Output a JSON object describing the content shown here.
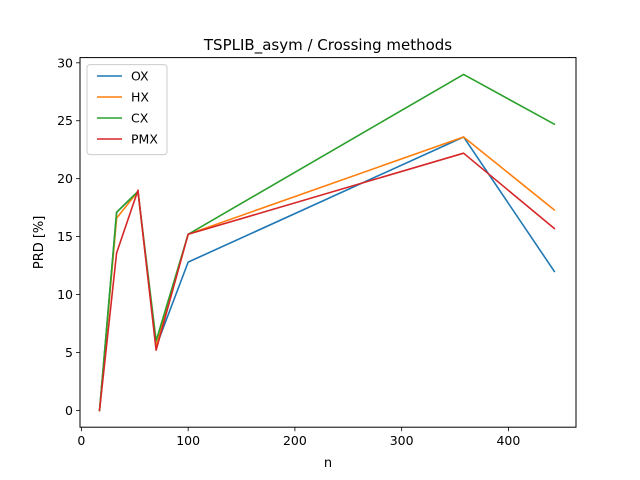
{
  "chart_data": {
    "type": "line",
    "title": "TSPLIB_asym / Crossing methods",
    "xlabel": "n",
    "ylabel": "PRD [%]",
    "xlim": [
      -1.3,
      463.3
    ],
    "ylim": [
      -1.45,
      30.45
    ],
    "xticks": [
      0,
      100,
      200,
      300,
      400
    ],
    "yticks": [
      0,
      5,
      10,
      15,
      20,
      25,
      30
    ],
    "grid": false,
    "legend_position": "top-left",
    "x": [
      17,
      33,
      53,
      70,
      100,
      358,
      443
    ],
    "series": [
      {
        "name": "OX",
        "color": "#1f77b4",
        "values": [
          0,
          17.1,
          18.9,
          5.5,
          12.8,
          23.6,
          12.0
        ]
      },
      {
        "name": "HX",
        "color": "#ff7f0e",
        "values": [
          0,
          16.6,
          18.9,
          5.5,
          15.2,
          23.6,
          17.3
        ]
      },
      {
        "name": "CX",
        "color": "#2ca02c",
        "values": [
          0,
          17.1,
          18.9,
          6.0,
          15.2,
          29.0,
          24.7
        ]
      },
      {
        "name": "PMX",
        "color": "#d62728",
        "values": [
          0,
          13.6,
          19.0,
          5.2,
          15.2,
          22.2,
          15.7
        ]
      }
    ]
  }
}
